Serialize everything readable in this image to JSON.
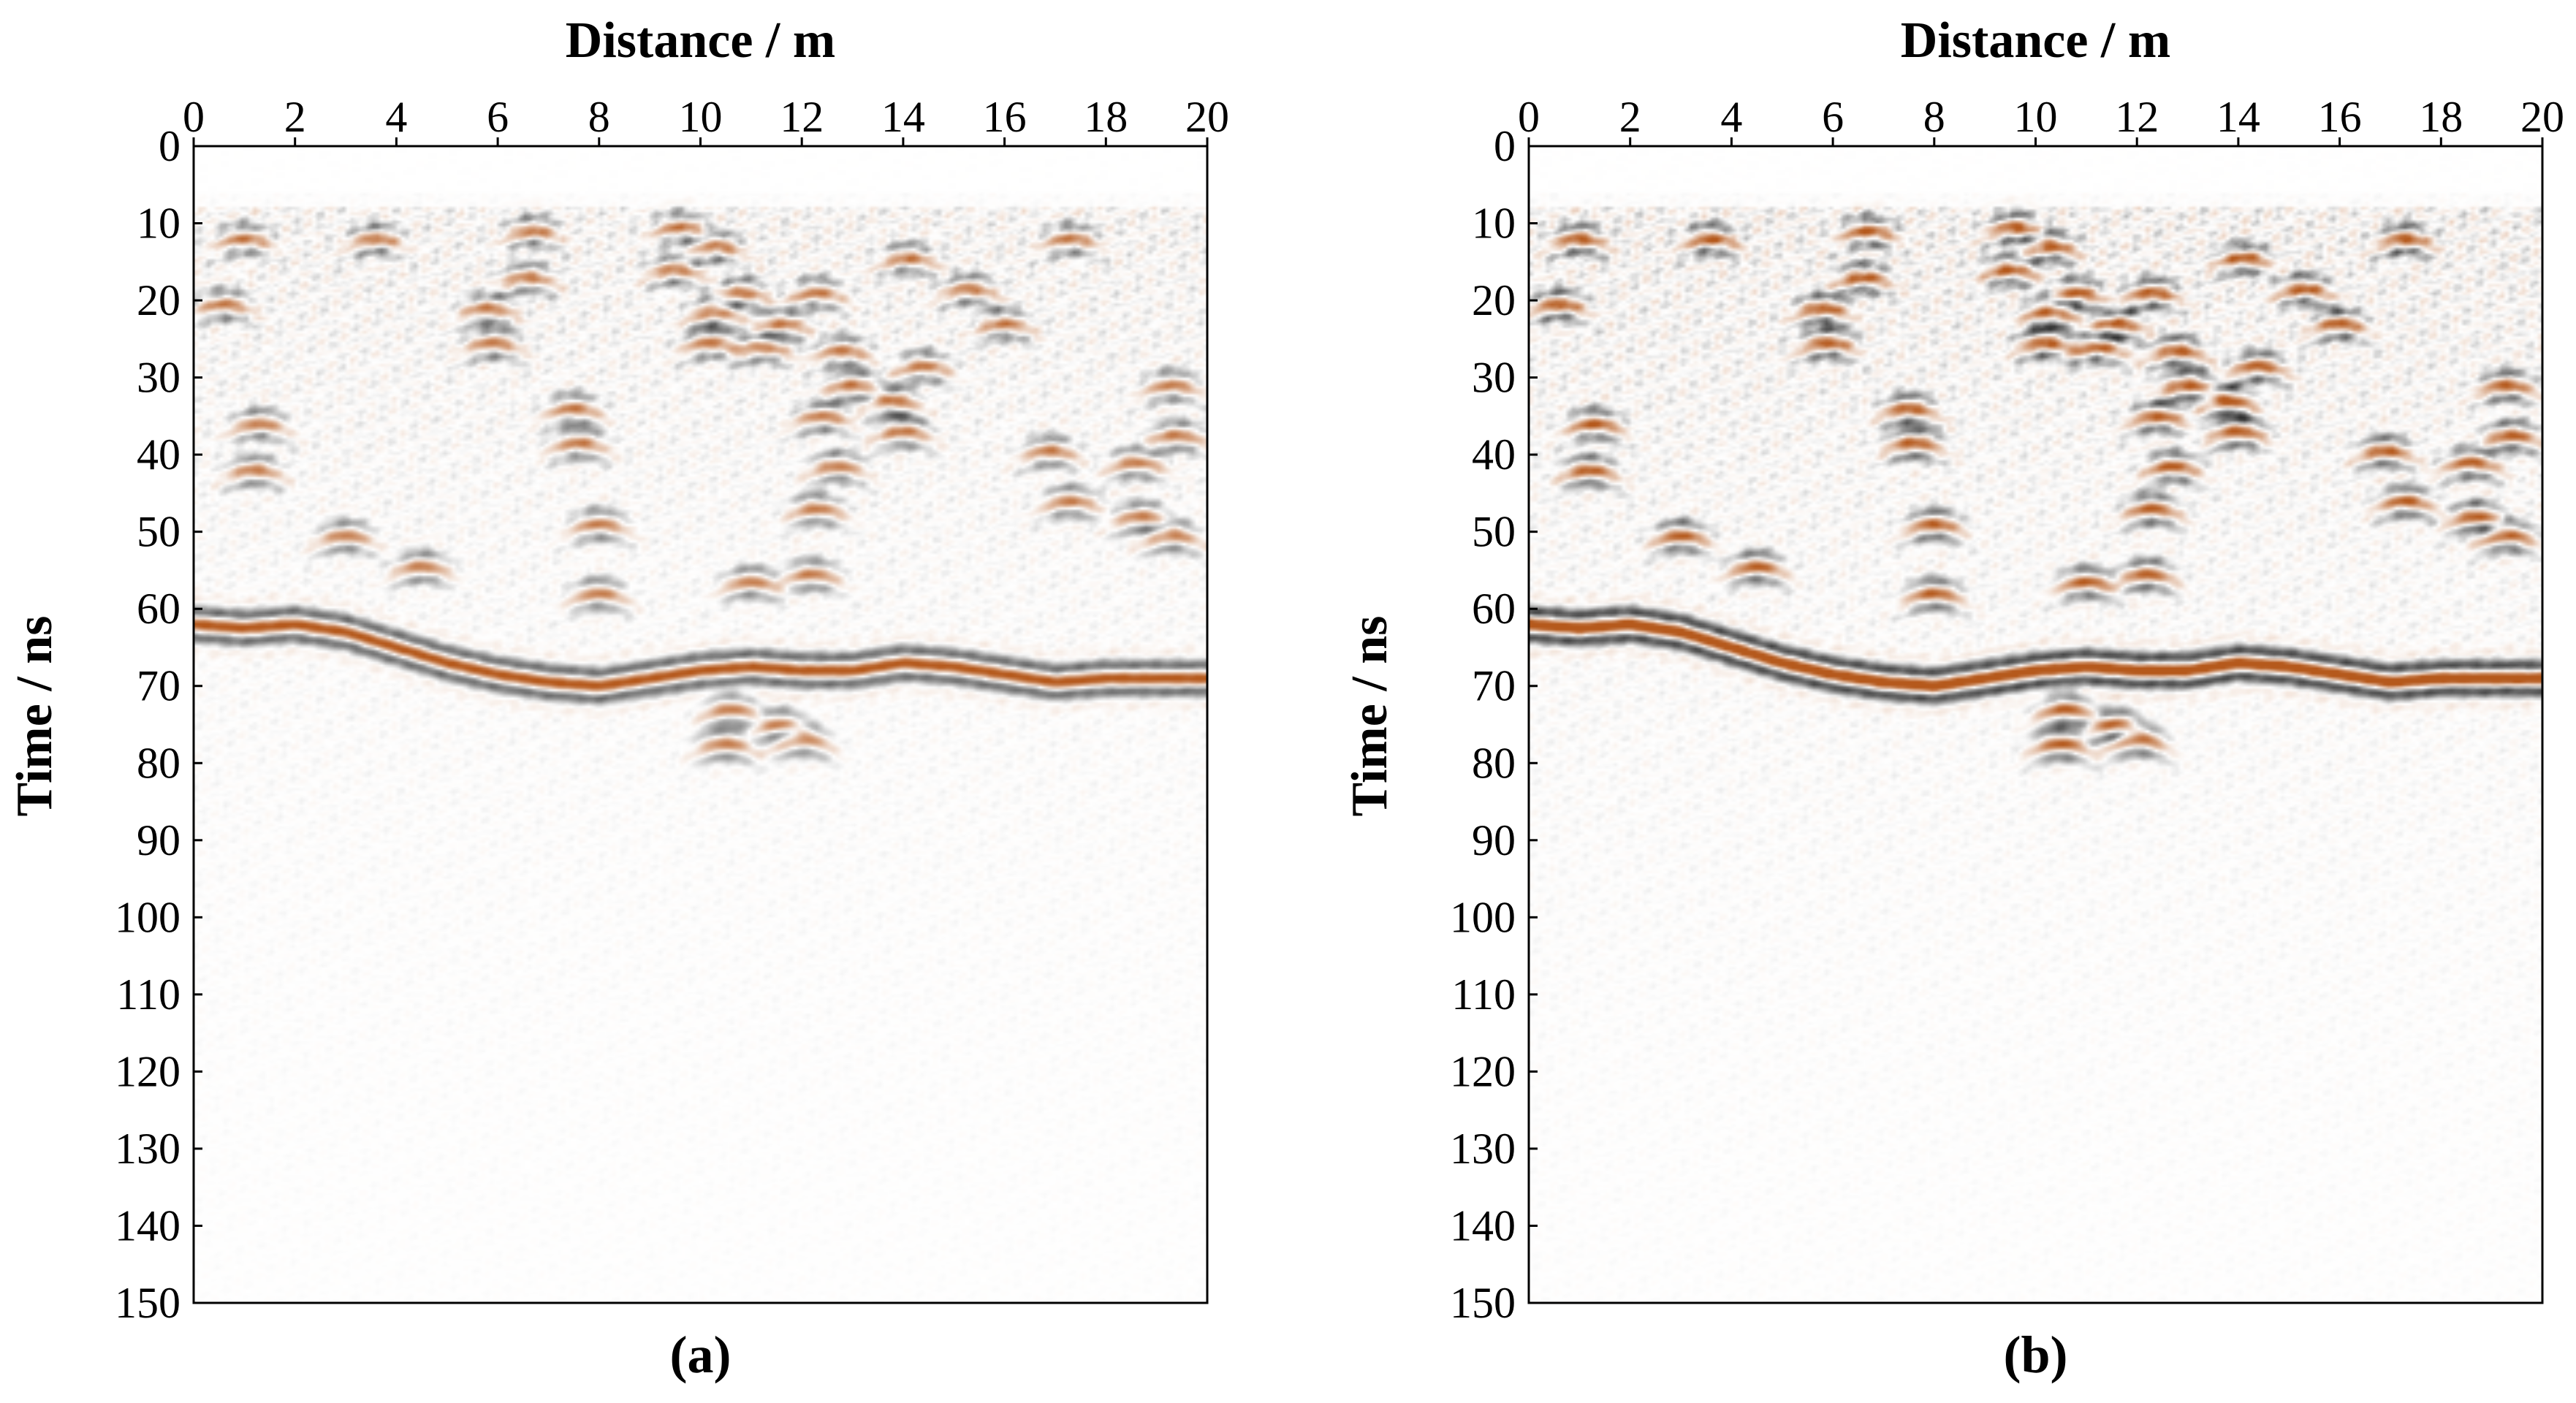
{
  "chart_data": [
    {
      "type": "heatmap",
      "caption": "(a)",
      "xlabel": "Distance / m",
      "ylabel": "Time / ns",
      "x_axis_position": "top",
      "y_axis_inverted": true,
      "xlim": [
        0,
        20
      ],
      "ylim": [
        0,
        150
      ],
      "xticks": [
        0,
        2,
        4,
        6,
        8,
        10,
        12,
        14,
        16,
        18,
        20
      ],
      "yticks": [
        0,
        10,
        20,
        30,
        40,
        50,
        60,
        70,
        80,
        90,
        100,
        110,
        120,
        130,
        140,
        150
      ],
      "grid": false,
      "colormap": [
        "#000000",
        "#ffffff",
        "#b5591c"
      ],
      "amplitude_scale": 0.8,
      "reflections": [
        {
          "x": 0.6,
          "y": 20.5
        },
        {
          "x": 1.0,
          "y": 12.0
        },
        {
          "x": 1.3,
          "y": 36.0
        },
        {
          "x": 1.2,
          "y": 42.0
        },
        {
          "x": 3.6,
          "y": 12.0
        },
        {
          "x": 3.0,
          "y": 50.5
        },
        {
          "x": 4.5,
          "y": 54.5
        },
        {
          "x": 5.8,
          "y": 21.0
        },
        {
          "x": 5.9,
          "y": 25.5
        },
        {
          "x": 6.6,
          "y": 17.0
        },
        {
          "x": 6.7,
          "y": 11.0
        },
        {
          "x": 7.5,
          "y": 34.0
        },
        {
          "x": 7.6,
          "y": 38.5
        },
        {
          "x": 8.0,
          "y": 49.0
        },
        {
          "x": 8.0,
          "y": 58.0
        },
        {
          "x": 9.6,
          "y": 10.5
        },
        {
          "x": 9.5,
          "y": 16.0
        },
        {
          "x": 10.3,
          "y": 13.0
        },
        {
          "x": 10.3,
          "y": 21.5
        },
        {
          "x": 10.2,
          "y": 25.5
        },
        {
          "x": 10.8,
          "y": 19.0
        },
        {
          "x": 11.6,
          "y": 23.0
        },
        {
          "x": 11.2,
          "y": 26.0
        },
        {
          "x": 12.3,
          "y": 19.0
        },
        {
          "x": 12.8,
          "y": 26.5
        },
        {
          "x": 12.4,
          "y": 35.0
        },
        {
          "x": 13.0,
          "y": 31.0
        },
        {
          "x": 12.7,
          "y": 41.5
        },
        {
          "x": 12.3,
          "y": 47.0
        },
        {
          "x": 13.8,
          "y": 33.0
        },
        {
          "x": 14.1,
          "y": 14.5
        },
        {
          "x": 14.4,
          "y": 28.5
        },
        {
          "x": 14.0,
          "y": 37.0
        },
        {
          "x": 15.3,
          "y": 18.5
        },
        {
          "x": 16.0,
          "y": 23.0
        },
        {
          "x": 17.3,
          "y": 12.0
        },
        {
          "x": 16.9,
          "y": 39.5
        },
        {
          "x": 17.3,
          "y": 46.0
        },
        {
          "x": 18.7,
          "y": 48.0
        },
        {
          "x": 19.3,
          "y": 50.5
        },
        {
          "x": 19.3,
          "y": 31.0
        },
        {
          "x": 19.4,
          "y": 37.5
        },
        {
          "x": 18.6,
          "y": 41.0
        },
        {
          "x": 10.6,
          "y": 73.0
        },
        {
          "x": 11.6,
          "y": 75.0
        },
        {
          "x": 12.0,
          "y": 77.0
        },
        {
          "x": 10.5,
          "y": 77.5
        },
        {
          "x": 12.2,
          "y": 55.5
        },
        {
          "x": 11.0,
          "y": 56.5
        }
      ],
      "main_reflector": [
        {
          "x": 0.0,
          "y": 62.0
        },
        {
          "x": 1.0,
          "y": 62.5
        },
        {
          "x": 2.0,
          "y": 62.0
        },
        {
          "x": 3.0,
          "y": 63.0
        },
        {
          "x": 4.0,
          "y": 65.0
        },
        {
          "x": 5.0,
          "y": 67.0
        },
        {
          "x": 6.0,
          "y": 68.5
        },
        {
          "x": 7.0,
          "y": 69.5
        },
        {
          "x": 8.0,
          "y": 70.0
        },
        {
          "x": 9.0,
          "y": 69.0
        },
        {
          "x": 10.0,
          "y": 68.0
        },
        {
          "x": 11.0,
          "y": 67.5
        },
        {
          "x": 12.0,
          "y": 68.0
        },
        {
          "x": 13.0,
          "y": 68.0
        },
        {
          "x": 14.0,
          "y": 67.0
        },
        {
          "x": 15.0,
          "y": 67.5
        },
        {
          "x": 16.0,
          "y": 68.5
        },
        {
          "x": 17.0,
          "y": 69.5
        },
        {
          "x": 18.0,
          "y": 69.0
        },
        {
          "x": 19.0,
          "y": 69.0
        },
        {
          "x": 20.0,
          "y": 69.0
        }
      ]
    },
    {
      "type": "heatmap",
      "caption": "(b)",
      "xlabel": "Distance / m",
      "ylabel": "Time / ns",
      "x_axis_position": "top",
      "y_axis_inverted": true,
      "xlim": [
        0,
        20
      ],
      "ylim": [
        0,
        150
      ],
      "xticks": [
        0,
        2,
        4,
        6,
        8,
        10,
        12,
        14,
        16,
        18,
        20
      ],
      "yticks": [
        0,
        10,
        20,
        30,
        40,
        50,
        60,
        70,
        80,
        90,
        100,
        110,
        120,
        130,
        140,
        150
      ],
      "grid": false,
      "colormap": [
        "#000000",
        "#ffffff",
        "#b5591c"
      ],
      "amplitude_scale": 1.0,
      "reflections": [
        {
          "x": 0.6,
          "y": 20.5
        },
        {
          "x": 1.0,
          "y": 12.0
        },
        {
          "x": 1.3,
          "y": 36.0
        },
        {
          "x": 1.2,
          "y": 42.0
        },
        {
          "x": 3.6,
          "y": 12.0
        },
        {
          "x": 3.0,
          "y": 50.5
        },
        {
          "x": 4.5,
          "y": 54.5
        },
        {
          "x": 5.8,
          "y": 21.0
        },
        {
          "x": 5.9,
          "y": 25.5
        },
        {
          "x": 6.6,
          "y": 17.0
        },
        {
          "x": 6.7,
          "y": 11.0
        },
        {
          "x": 7.5,
          "y": 34.0
        },
        {
          "x": 7.6,
          "y": 38.5
        },
        {
          "x": 8.0,
          "y": 49.0
        },
        {
          "x": 8.0,
          "y": 58.0
        },
        {
          "x": 9.6,
          "y": 10.5
        },
        {
          "x": 9.5,
          "y": 16.0
        },
        {
          "x": 10.3,
          "y": 13.0
        },
        {
          "x": 10.3,
          "y": 21.5
        },
        {
          "x": 10.2,
          "y": 25.5
        },
        {
          "x": 10.8,
          "y": 19.0
        },
        {
          "x": 11.6,
          "y": 23.0
        },
        {
          "x": 11.2,
          "y": 26.0
        },
        {
          "x": 12.3,
          "y": 19.0
        },
        {
          "x": 12.8,
          "y": 26.5
        },
        {
          "x": 12.4,
          "y": 35.0
        },
        {
          "x": 13.0,
          "y": 31.0
        },
        {
          "x": 12.7,
          "y": 41.5
        },
        {
          "x": 12.3,
          "y": 47.0
        },
        {
          "x": 13.8,
          "y": 33.0
        },
        {
          "x": 14.1,
          "y": 14.5
        },
        {
          "x": 14.4,
          "y": 28.5
        },
        {
          "x": 14.0,
          "y": 37.0
        },
        {
          "x": 15.3,
          "y": 18.5
        },
        {
          "x": 16.0,
          "y": 23.0
        },
        {
          "x": 17.3,
          "y": 12.0
        },
        {
          "x": 16.9,
          "y": 39.5
        },
        {
          "x": 17.3,
          "y": 46.0
        },
        {
          "x": 18.7,
          "y": 48.0
        },
        {
          "x": 19.3,
          "y": 50.5
        },
        {
          "x": 19.3,
          "y": 31.0
        },
        {
          "x": 19.4,
          "y": 37.5
        },
        {
          "x": 18.6,
          "y": 41.0
        },
        {
          "x": 10.6,
          "y": 73.0
        },
        {
          "x": 11.6,
          "y": 75.0
        },
        {
          "x": 12.0,
          "y": 77.0
        },
        {
          "x": 10.5,
          "y": 77.5
        },
        {
          "x": 12.2,
          "y": 55.5
        },
        {
          "x": 11.0,
          "y": 56.5
        }
      ],
      "main_reflector": [
        {
          "x": 0.0,
          "y": 62.0
        },
        {
          "x": 1.0,
          "y": 62.5
        },
        {
          "x": 2.0,
          "y": 62.0
        },
        {
          "x": 3.0,
          "y": 63.0
        },
        {
          "x": 4.0,
          "y": 65.0
        },
        {
          "x": 5.0,
          "y": 67.0
        },
        {
          "x": 6.0,
          "y": 68.5
        },
        {
          "x": 7.0,
          "y": 69.5
        },
        {
          "x": 8.0,
          "y": 70.0
        },
        {
          "x": 9.0,
          "y": 69.0
        },
        {
          "x": 10.0,
          "y": 68.0
        },
        {
          "x": 11.0,
          "y": 67.5
        },
        {
          "x": 12.0,
          "y": 68.0
        },
        {
          "x": 13.0,
          "y": 68.0
        },
        {
          "x": 14.0,
          "y": 67.0
        },
        {
          "x": 15.0,
          "y": 67.5
        },
        {
          "x": 16.0,
          "y": 68.5
        },
        {
          "x": 17.0,
          "y": 69.5
        },
        {
          "x": 18.0,
          "y": 69.0
        },
        {
          "x": 19.0,
          "y": 69.0
        },
        {
          "x": 20.0,
          "y": 69.0
        }
      ]
    }
  ]
}
